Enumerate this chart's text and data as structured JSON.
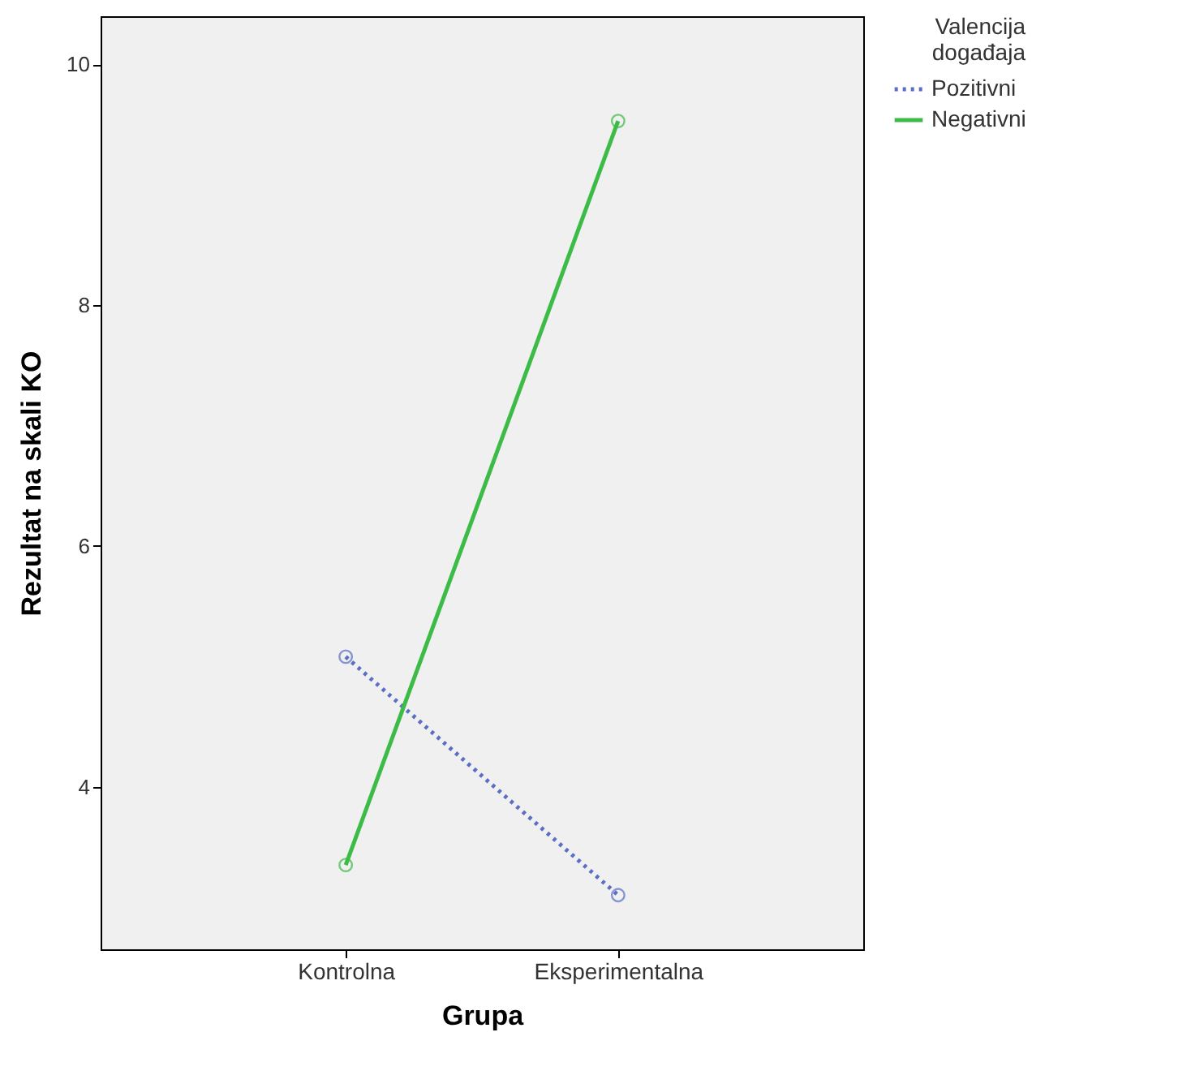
{
  "chart_data": {
    "type": "line",
    "xlabel": "Grupa",
    "ylabel": "Rezultat na skali KO",
    "legend_title": "Valencija događaja",
    "categories": [
      "Kontrolna",
      "Eksperimentalna"
    ],
    "series": [
      {
        "name": "Pozitivni",
        "color": "#5a6fc4",
        "values": [
          5.08,
          3.1
        ],
        "line_style": "dotted"
      },
      {
        "name": "Negativni",
        "color": "#3dbb47",
        "values": [
          3.35,
          9.53
        ],
        "line_style": "solid"
      }
    ],
    "ylim": [
      2.65,
      10.4
    ],
    "yticks": [
      4,
      6,
      8,
      10
    ],
    "grid": false,
    "legend": "top right",
    "marker": "circle"
  }
}
